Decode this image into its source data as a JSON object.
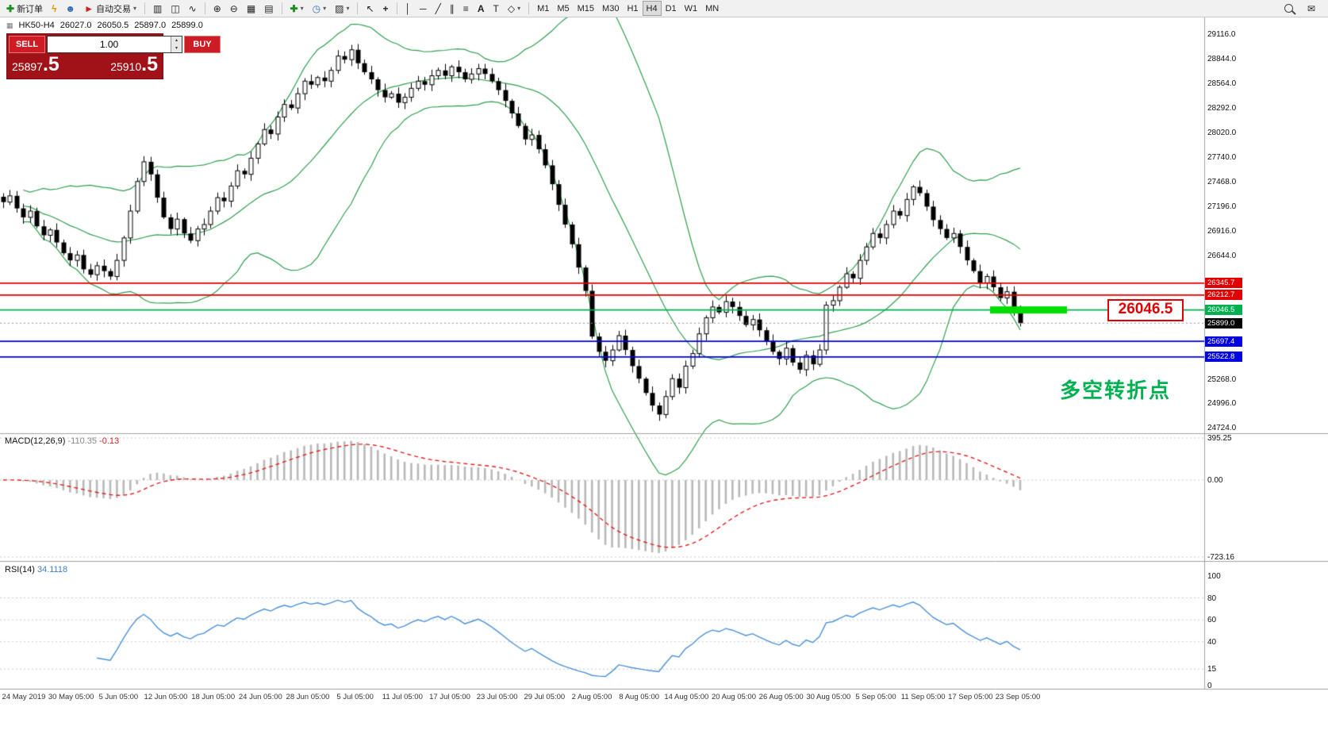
{
  "toolbar": {
    "new_order_label": "新订单",
    "auto_trading_label": "自动交易",
    "timeframes": [
      "M1",
      "M5",
      "M15",
      "M30",
      "H1",
      "H4",
      "D1",
      "W1",
      "MN"
    ],
    "active_timeframe": "H4"
  },
  "icons": {
    "mini_chart": "▦",
    "new_order": "✚",
    "lightning": "ϟ",
    "user": "☻",
    "auto_trading": "►",
    "caret": "▾",
    "caret_up": "▴",
    "bar_chart": "▥",
    "candle_chart": "◫",
    "line_chart": "∿",
    "zoom_in": "⊕",
    "zoom_out": "⊖",
    "grid": "▦",
    "tile_windows": "▤",
    "add_indicator": "✚",
    "period": "◷",
    "template": "▨",
    "cursor": "↖",
    "crosshair": "+",
    "vline": "│",
    "hline": "─",
    "trendline": "╱",
    "channel": "∥",
    "fibonacci": "≡",
    "text": "A",
    "text_label": "T",
    "shapes": "◇",
    "mail": "✉"
  },
  "chart_header": {
    "symbol": "HK50-H4",
    "open": "26027.0",
    "high": "26050.5",
    "low": "25897.0",
    "close": "25899.0"
  },
  "order_panel": {
    "sell_label": "SELL",
    "buy_label": "BUY",
    "volume": "1.00",
    "sell_price_main": "25897",
    "sell_price_big": ".5",
    "buy_price_main": "25910",
    "buy_price_big": ".5"
  },
  "overlays": {
    "level_label": "26046.5",
    "annotation": "多空转折点"
  },
  "indicators": {
    "macd": {
      "name": "MACD(12,26,9)",
      "value_main": "-110.35",
      "value_signal": "-0.13",
      "axis": [
        "395.25",
        "0.00",
        "-723.16"
      ]
    },
    "rsi": {
      "name": "RSI(14)",
      "value": "34.1118",
      "axis": [
        "100",
        "80",
        "60",
        "40",
        "15",
        "0"
      ]
    }
  },
  "price_axis": {
    "labels": [
      {
        "text": "29116.0",
        "price": 29116.0
      },
      {
        "text": "28844.0",
        "price": 28844.0
      },
      {
        "text": "28564.0",
        "price": 28564.0
      },
      {
        "text": "28292.0",
        "price": 28292.0
      },
      {
        "text": "28020.0",
        "price": 28020.0
      },
      {
        "text": "27740.0",
        "price": 27740.0
      },
      {
        "text": "27468.0",
        "price": 27468.0
      },
      {
        "text": "27196.0",
        "price": 27196.0
      },
      {
        "text": "26916.0",
        "price": 26916.0
      },
      {
        "text": "26644.0",
        "price": 26644.0
      },
      {
        "text": "25268.0",
        "price": 25268.0
      },
      {
        "text": "24996.0",
        "price": 24996.0
      },
      {
        "text": "24724.0",
        "price": 24724.0
      }
    ],
    "badges": [
      {
        "text": "26345.7",
        "price": 26345.7,
        "color": "#e00000"
      },
      {
        "text": "26212.7",
        "price": 26212.7,
        "color": "#e00000"
      },
      {
        "text": "26046.5",
        "price": 26046.5,
        "color": "#00b050"
      },
      {
        "text": "25899.0",
        "price": 25899.0,
        "color": "#000000"
      },
      {
        "text": "25697.4",
        "price": 25697.4,
        "color": "#0000e0"
      },
      {
        "text": "25522.8",
        "price": 25522.8,
        "color": "#0000e0"
      }
    ]
  },
  "time_axis": {
    "labels": [
      "24 May 2019",
      "30 May 05:00",
      "5 Jun 05:00",
      "12 Jun 05:00",
      "18 Jun 05:00",
      "24 Jun 05:00",
      "28 Jun 05:00",
      "5 Jul 05:00",
      "11 Jul 05:00",
      "17 Jul 05:00",
      "23 Jul 05:00",
      "29 Jul 05:00",
      "2 Aug 05:00",
      "8 Aug 05:00",
      "14 Aug 05:00",
      "20 Aug 05:00",
      "26 Aug 05:00",
      "30 Aug 05:00",
      "5 Sep 05:00",
      "11 Sep 05:00",
      "17 Sep 05:00",
      "23 Sep 05:00"
    ]
  },
  "chart_data": {
    "type": "candlestick",
    "symbol": "HK50-H4",
    "timeframe": "H4",
    "closes": [
      27250,
      27320,
      27180,
      27080,
      27150,
      26980,
      26880,
      26940,
      26800,
      26680,
      26600,
      26660,
      26500,
      26440,
      26540,
      26480,
      26420,
      26600,
      26850,
      27150,
      27480,
      27700,
      27560,
      27300,
      27080,
      26950,
      27060,
      26900,
      26820,
      26950,
      27000,
      27150,
      27300,
      27260,
      27430,
      27600,
      27560,
      27740,
      27900,
      28060,
      28010,
      28200,
      28340,
      28300,
      28460,
      28600,
      28560,
      28640,
      28600,
      28720,
      28880,
      28840,
      28950,
      28800,
      28700,
      28620,
      28500,
      28420,
      28460,
      28360,
      28420,
      28520,
      28600,
      28560,
      28660,
      28720,
      28660,
      28760,
      28700,
      28620,
      28680,
      28740,
      28680,
      28600,
      28500,
      28380,
      28240,
      28100,
      27950,
      28000,
      27840,
      27660,
      27450,
      27220,
      27000,
      26780,
      26520,
      26260,
      25750,
      25580,
      25480,
      25600,
      25760,
      25600,
      25420,
      25280,
      25120,
      24980,
      24880,
      25080,
      25280,
      25180,
      25420,
      25560,
      25780,
      25960,
      26080,
      26020,
      26140,
      26080,
      25980,
      25880,
      25940,
      25820,
      25700,
      25580,
      25500,
      25620,
      25460,
      25380,
      25540,
      25440,
      25600,
      26100,
      26150,
      26300,
      26450,
      26400,
      26600,
      26750,
      26900,
      26850,
      27000,
      27150,
      27100,
      27280,
      27420,
      27350,
      27200,
      27050,
      26950,
      26850,
      26900,
      26750,
      26600,
      26480,
      26350,
      26420,
      26300,
      26180,
      26250,
      26050,
      25899
    ],
    "bollinger": {
      "period": 20,
      "deviation": 2,
      "color": "#2f9e4f"
    },
    "levels": [
      {
        "price": 26345.7,
        "color": "#e00000"
      },
      {
        "price": 26212.7,
        "color": "#e00000"
      },
      {
        "price": 26046.5,
        "color": "#00b050",
        "highlight": true
      },
      {
        "price": 25697.4,
        "color": "#0000e0"
      },
      {
        "price": 25522.8,
        "color": "#0000e0"
      }
    ],
    "highlight_color": "#00dd00",
    "current_price": 25899.0,
    "y_axis_anchors": {
      "top_price": 29116.0,
      "bottom_price": 24724.0
    },
    "macd_axis": {
      "max": 395.25,
      "zero": 0.0,
      "min": -723.16
    },
    "rsi_axis": {
      "max": 100,
      "min": 0,
      "levels": [
        80,
        60,
        40,
        15
      ]
    }
  }
}
